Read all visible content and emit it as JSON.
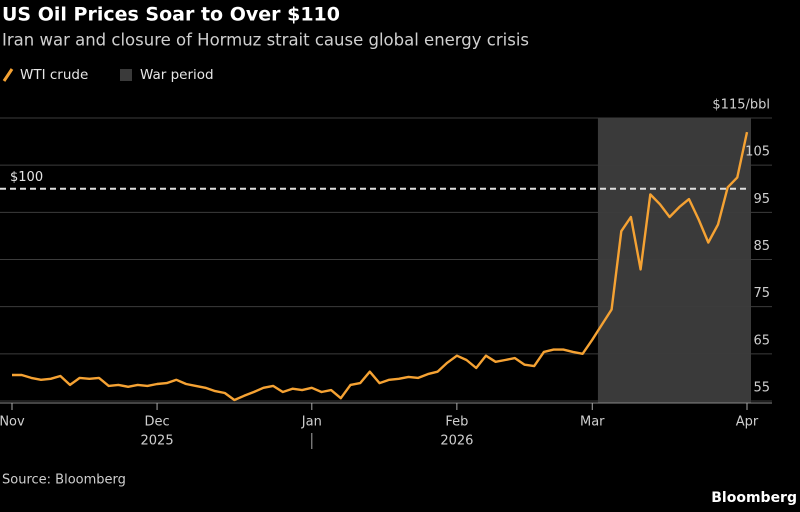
{
  "chart_data": {
    "type": "line",
    "title": "US Oil Prices Soar to Over $110",
    "subtitle": "Iran war and closure of Hormuz strait cause global energy crisis",
    "source": "Source: Bloomberg",
    "brand": "Bloomberg",
    "categories": [
      "Nov",
      null,
      null,
      null,
      null,
      null,
      null,
      null,
      null,
      null,
      null,
      null,
      null,
      null,
      null,
      "Dec",
      null,
      null,
      null,
      null,
      null,
      null,
      null,
      null,
      null,
      null,
      null,
      null,
      null,
      null,
      null,
      "Jan",
      null,
      null,
      null,
      null,
      null,
      null,
      null,
      null,
      null,
      null,
      null,
      null,
      null,
      null,
      "Feb",
      null,
      null,
      null,
      null,
      null,
      null,
      null,
      null,
      null,
      null,
      null,
      null,
      null,
      "Mar",
      null,
      null,
      null,
      null,
      null,
      null,
      null,
      null,
      null,
      null,
      null,
      null,
      null,
      null,
      null,
      "Apr"
    ],
    "year_labels": [
      {
        "label": "2025",
        "category_index": 15
      },
      {
        "label": "2026",
        "category_index": 46
      }
    ],
    "series": [
      {
        "name": "WTI crude",
        "color": "#f5a233",
        "values": [
          60.5,
          60.5,
          59.9,
          59.5,
          59.7,
          60.3,
          58.4,
          59.9,
          59.7,
          59.9,
          58.2,
          58.4,
          58.0,
          58.4,
          58.2,
          58.6,
          58.8,
          59.5,
          58.6,
          58.2,
          57.8,
          57.1,
          56.7,
          55.2,
          56.1,
          56.9,
          57.8,
          58.2,
          56.9,
          57.6,
          57.3,
          57.8,
          56.9,
          57.3,
          55.6,
          58.4,
          58.8,
          61.2,
          58.8,
          59.5,
          59.7,
          60.1,
          59.9,
          60.7,
          61.2,
          63.1,
          64.6,
          63.7,
          62.0,
          64.6,
          63.3,
          63.7,
          64.1,
          62.7,
          62.4,
          65.4,
          65.9,
          65.9,
          65.4,
          65.0,
          68.0,
          71.2,
          74.4,
          91.0,
          94.0,
          82.9,
          98.8,
          96.7,
          94.0,
          96.1,
          97.8,
          93.5,
          88.6,
          92.4,
          100.3,
          102.4,
          112.0
        ]
      }
    ],
    "shade": {
      "name": "War period",
      "color": "#3a3a3a",
      "start_index": 61,
      "end_index": 76
    },
    "reference_line": {
      "value": 100,
      "label": "$100"
    },
    "ylim": [
      54,
      115
    ],
    "yticks": [
      55,
      65,
      75,
      85,
      95,
      105,
      {
        "value": 115,
        "label": "$115/bbl"
      }
    ],
    "grid": true
  }
}
